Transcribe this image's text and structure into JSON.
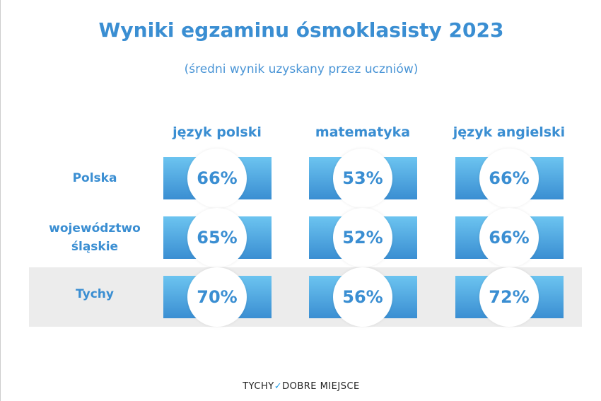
{
  "title": "Wyniki egzaminu ósmoklasisty 2023",
  "subtitle": "(średni wynik uzyskany przez uczniów)",
  "logo": {
    "left": "TYCHY",
    "mark": "✓",
    "right": "DOBRE MIEJSCE"
  },
  "colors": {
    "accent": "#3a8ed2",
    "bar_top": "#6cc4f0",
    "highlight_row": "#ececec"
  },
  "chart_data": {
    "type": "table",
    "columns": [
      "język polski",
      "matematyka",
      "język angielski"
    ],
    "rows": [
      {
        "label": "Polska",
        "values": [
          "66%",
          "53%",
          "66%"
        ]
      },
      {
        "label": "województwo śląskie",
        "values": [
          "65%",
          "52%",
          "66%"
        ]
      },
      {
        "label": "Tychy",
        "values": [
          "70%",
          "56%",
          "72%"
        ]
      }
    ],
    "highlighted_row": "Tychy"
  }
}
